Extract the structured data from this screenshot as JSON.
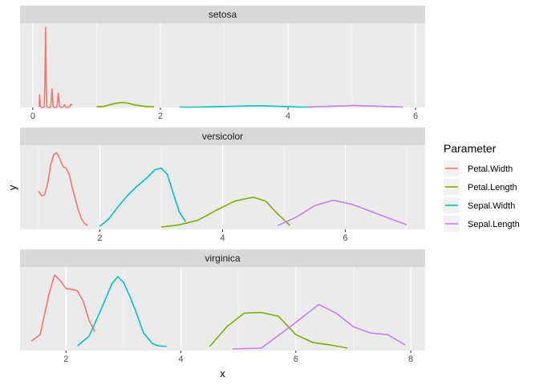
{
  "chart_data": {
    "type": "line",
    "xlabel": "x",
    "ylabel": "y",
    "legend": {
      "title": "Parameter",
      "position": "right"
    },
    "grid": true,
    "series_colors": {
      "Petal.Width": "#F8766D",
      "Petal.Length": "#7CAE00",
      "Sepal.Width": "#00BFC4",
      "Sepal.Length": "#C77CFF"
    },
    "panels": [
      {
        "title": "setosa",
        "xlim": [
          -0.2,
          6.15
        ],
        "ylim": [
          0,
          1.0
        ],
        "xticks": [
          0,
          2,
          4,
          6
        ],
        "series": [
          {
            "name": "Petal.Width",
            "x": [
              0.1,
              0.105,
              0.12,
              0.14,
              0.16,
              0.18,
              0.19,
              0.2,
              0.21,
              0.22,
              0.24,
              0.26,
              0.28,
              0.29,
              0.3,
              0.31,
              0.32,
              0.34,
              0.36,
              0.38,
              0.39,
              0.4,
              0.41,
              0.42,
              0.44,
              0.46,
              0.48,
              0.49,
              0.5,
              0.51,
              0.52,
              0.54,
              0.56,
              0.58,
              0.59,
              0.6,
              0.61
            ],
            "y": [
              0.01,
              0.15,
              0.01,
              0,
              0,
              0.01,
              0.3,
              0.95,
              0.3,
              0.01,
              0,
              0,
              0.01,
              0.1,
              0.22,
              0.1,
              0.01,
              0,
              0,
              0.01,
              0.08,
              0.17,
              0.08,
              0.01,
              0,
              0,
              0.01,
              0.03,
              0.03,
              0.01,
              0,
              0,
              0,
              0.01,
              0.03,
              0.04,
              0.02
            ]
          },
          {
            "name": "Petal.Length",
            "x": [
              1.0,
              1.1,
              1.2,
              1.3,
              1.4,
              1.5,
              1.6,
              1.7,
              1.8,
              1.9
            ],
            "y": [
              0.01,
              0.01,
              0.03,
              0.05,
              0.06,
              0.05,
              0.03,
              0.02,
              0.01,
              0.01
            ]
          },
          {
            "name": "Sepal.Width",
            "x": [
              2.3,
              2.6,
              2.9,
              3.2,
              3.4,
              3.6,
              3.8,
              4.0,
              4.2,
              4.4
            ],
            "y": [
              0.005,
              0.005,
              0.01,
              0.015,
              0.02,
              0.02,
              0.015,
              0.01,
              0.005,
              0.005
            ]
          },
          {
            "name": "Sepal.Length",
            "x": [
              4.3,
              4.5,
              4.7,
              4.9,
              5.0,
              5.2,
              5.4,
              5.6,
              5.8
            ],
            "y": [
              0.005,
              0.01,
              0.015,
              0.02,
              0.025,
              0.02,
              0.015,
              0.01,
              0.005
            ]
          }
        ]
      },
      {
        "title": "versicolor",
        "xlim": [
          0.7,
          7.3
        ],
        "ylim": [
          0,
          1.1
        ],
        "xticks": [
          2,
          4,
          6
        ],
        "series": [
          {
            "name": "Petal.Width",
            "x": [
              1.0,
              1.05,
              1.1,
              1.15,
              1.2,
              1.25,
              1.3,
              1.35,
              1.4,
              1.45,
              1.5,
              1.55,
              1.6,
              1.65,
              1.7,
              1.75,
              1.8
            ],
            "y": [
              0.5,
              0.44,
              0.45,
              0.6,
              0.85,
              0.98,
              1.0,
              0.92,
              0.82,
              0.8,
              0.72,
              0.55,
              0.4,
              0.25,
              0.14,
              0.08,
              0.05
            ]
          },
          {
            "name": "Sepal.Width",
            "x": [
              2.0,
              2.15,
              2.3,
              2.45,
              2.6,
              2.75,
              2.9,
              3.0,
              3.1,
              3.2,
              3.3,
              3.4
            ],
            "y": [
              0.04,
              0.14,
              0.3,
              0.44,
              0.56,
              0.66,
              0.78,
              0.8,
              0.72,
              0.46,
              0.22,
              0.1
            ]
          },
          {
            "name": "Petal.Length",
            "x": [
              3.0,
              3.3,
              3.6,
              3.9,
              4.2,
              4.5,
              4.7,
              4.9,
              5.1
            ],
            "y": [
              0.03,
              0.06,
              0.12,
              0.25,
              0.37,
              0.42,
              0.37,
              0.2,
              0.05
            ]
          },
          {
            "name": "Sepal.Length",
            "x": [
              4.9,
              5.2,
              5.5,
              5.8,
              6.1,
              6.4,
              6.7,
              7.0
            ],
            "y": [
              0.05,
              0.16,
              0.31,
              0.38,
              0.33,
              0.24,
              0.15,
              0.06
            ]
          }
        ]
      },
      {
        "title": "virginica",
        "xlim": [
          1.2,
          8.25
        ],
        "ylim": [
          0,
          1.05
        ],
        "xticks": [
          2,
          4,
          6,
          8
        ],
        "series": [
          {
            "name": "Petal.Width",
            "x": [
              1.4,
              1.55,
              1.7,
              1.8,
              1.9,
              2.0,
              2.1,
              2.2,
              2.3,
              2.4,
              2.5
            ],
            "y": [
              0.12,
              0.2,
              0.7,
              0.95,
              0.88,
              0.78,
              0.77,
              0.75,
              0.62,
              0.38,
              0.24
            ]
          },
          {
            "name": "Sepal.Width",
            "x": [
              2.2,
              2.4,
              2.6,
              2.8,
              2.9,
              3.0,
              3.1,
              3.2,
              3.35,
              3.5,
              3.6,
              3.75
            ],
            "y": [
              0.06,
              0.18,
              0.5,
              0.84,
              0.93,
              0.86,
              0.7,
              0.52,
              0.22,
              0.09,
              0.06,
              0.05
            ]
          },
          {
            "name": "Petal.Length",
            "x": [
              4.5,
              4.8,
              5.1,
              5.4,
              5.7,
              6.0,
              6.3,
              6.6,
              6.9
            ],
            "y": [
              0.05,
              0.3,
              0.47,
              0.48,
              0.43,
              0.2,
              0.1,
              0.07,
              0.03
            ]
          },
          {
            "name": "Sepal.Length",
            "x": [
              4.9,
              5.4,
              5.9,
              6.4,
              6.7,
              7.0,
              7.3,
              7.6,
              7.9
            ],
            "y": [
              0.02,
              0.03,
              0.3,
              0.58,
              0.47,
              0.3,
              0.22,
              0.2,
              0.07
            ]
          }
        ]
      }
    ]
  }
}
